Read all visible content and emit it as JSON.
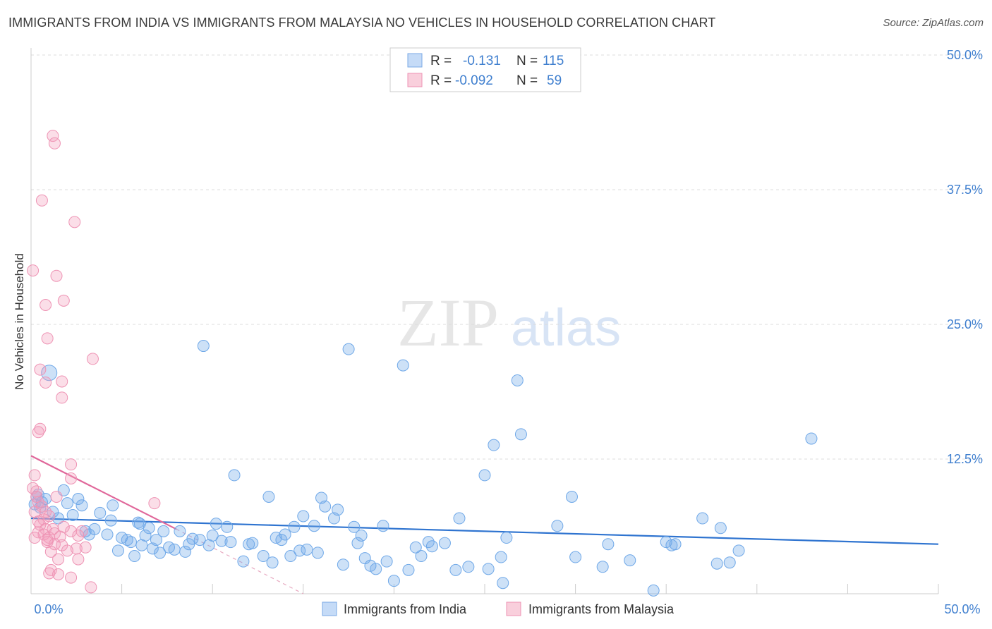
{
  "header": {
    "title": "IMMIGRANTS FROM INDIA VS IMMIGRANTS FROM MALAYSIA NO VEHICLES IN HOUSEHOLD CORRELATION CHART",
    "source": "Source: ZipAtlas.com"
  },
  "watermark": {
    "zip": "ZIP",
    "atlas": "atlas"
  },
  "colors": {
    "india": "#6fa8e8",
    "india_line": "#2f74d0",
    "malaysia": "#f4a0bd",
    "malaysia_line": "#e0679a",
    "value_text": "#3f7fcf"
  },
  "legend_box": {
    "rows": [
      {
        "r_label": "R =",
        "r_value": "-0.131",
        "n_label": "N =",
        "n_value": "115"
      },
      {
        "r_label": "R =",
        "r_value": "-0.092",
        "n_label": "N =",
        "n_value": "59"
      }
    ]
  },
  "chart_data": {
    "type": "scatter",
    "title": "IMMIGRANTS FROM INDIA VS IMMIGRANTS FROM MALAYSIA NO VEHICLES IN HOUSEHOLD CORRELATION CHART",
    "xlabel": "",
    "ylabel": "No Vehicles in Household",
    "xlim": [
      0,
      50
    ],
    "ylim": [
      0,
      50
    ],
    "x_tick_labels": [
      "0.0%",
      "50.0%"
    ],
    "y_ticks": [
      12.5,
      25,
      37.5,
      50
    ],
    "y_tick_labels": [
      "12.5%",
      "25.0%",
      "37.5%",
      "50.0%"
    ],
    "grid": true,
    "legend": [
      "Immigrants from India",
      "Immigrants from Malaysia"
    ],
    "series": [
      {
        "name": "Immigrants from India",
        "r": -0.131,
        "n": 115,
        "trend": {
          "x": [
            0,
            50
          ],
          "y": [
            7.0,
            4.6
          ]
        },
        "points": [
          [
            1.0,
            20.5
          ],
          [
            0.3,
            9.0
          ],
          [
            0.6,
            8.5
          ],
          [
            0.4,
            9.2
          ],
          [
            0.5,
            8.0
          ],
          [
            0.8,
            8.8
          ],
          [
            0.2,
            8.3
          ],
          [
            1.2,
            7.6
          ],
          [
            1.8,
            9.6
          ],
          [
            2.0,
            8.4
          ],
          [
            2.3,
            7.3
          ],
          [
            2.8,
            8.2
          ],
          [
            2.6,
            8.8
          ],
          [
            3.2,
            5.5
          ],
          [
            3.5,
            6.0
          ],
          [
            3.8,
            7.5
          ],
          [
            4.2,
            5.5
          ],
          [
            4.4,
            6.8
          ],
          [
            4.5,
            8.2
          ],
          [
            4.8,
            4.0
          ],
          [
            5.0,
            5.2
          ],
          [
            5.3,
            5.0
          ],
          [
            5.5,
            4.8
          ],
          [
            5.7,
            3.5
          ],
          [
            5.9,
            6.6
          ],
          [
            6.1,
            4.5
          ],
          [
            6.3,
            5.4
          ],
          [
            6.5,
            6.1
          ],
          [
            6.7,
            4.2
          ],
          [
            6.9,
            5.0
          ],
          [
            7.1,
            3.8
          ],
          [
            7.3,
            5.8
          ],
          [
            7.6,
            4.3
          ],
          [
            7.9,
            4.1
          ],
          [
            8.2,
            5.8
          ],
          [
            8.5,
            3.9
          ],
          [
            8.7,
            4.6
          ],
          [
            8.9,
            5.1
          ],
          [
            9.5,
            23.0
          ],
          [
            9.3,
            5.0
          ],
          [
            9.8,
            4.5
          ],
          [
            10.0,
            5.4
          ],
          [
            10.2,
            6.5
          ],
          [
            10.5,
            4.9
          ],
          [
            10.8,
            6.2
          ],
          [
            11.0,
            4.8
          ],
          [
            11.2,
            11.0
          ],
          [
            11.7,
            3.0
          ],
          [
            12.0,
            4.6
          ],
          [
            12.2,
            4.7
          ],
          [
            12.8,
            3.5
          ],
          [
            13.1,
            9.0
          ],
          [
            13.3,
            2.9
          ],
          [
            13.5,
            5.2
          ],
          [
            13.8,
            5.0
          ],
          [
            14.0,
            5.5
          ],
          [
            14.3,
            3.5
          ],
          [
            14.5,
            6.2
          ],
          [
            14.8,
            4.0
          ],
          [
            15.0,
            7.2
          ],
          [
            15.2,
            4.1
          ],
          [
            15.6,
            6.3
          ],
          [
            15.8,
            3.8
          ],
          [
            16.0,
            8.9
          ],
          [
            16.2,
            8.1
          ],
          [
            16.7,
            7.0
          ],
          [
            16.9,
            7.8
          ],
          [
            17.2,
            2.7
          ],
          [
            17.5,
            22.7
          ],
          [
            17.8,
            6.2
          ],
          [
            18.0,
            4.7
          ],
          [
            18.2,
            5.4
          ],
          [
            18.4,
            3.3
          ],
          [
            18.7,
            2.6
          ],
          [
            19.0,
            2.3
          ],
          [
            19.4,
            6.3
          ],
          [
            19.6,
            3.0
          ],
          [
            20.0,
            1.2
          ],
          [
            20.5,
            21.2
          ],
          [
            20.8,
            2.2
          ],
          [
            21.2,
            4.3
          ],
          [
            21.5,
            3.5
          ],
          [
            21.9,
            4.8
          ],
          [
            22.1,
            4.4
          ],
          [
            22.8,
            4.7
          ],
          [
            23.4,
            2.2
          ],
          [
            23.6,
            7.0
          ],
          [
            24.1,
            2.5
          ],
          [
            25.0,
            11.0
          ],
          [
            25.2,
            2.3
          ],
          [
            25.5,
            13.8
          ],
          [
            25.9,
            3.4
          ],
          [
            26.2,
            5.2
          ],
          [
            26.8,
            19.8
          ],
          [
            27.0,
            14.8
          ],
          [
            26.0,
            1.0
          ],
          [
            29.0,
            6.3
          ],
          [
            29.8,
            9.0
          ],
          [
            30.0,
            3.4
          ],
          [
            31.5,
            2.5
          ],
          [
            31.8,
            4.6
          ],
          [
            33.0,
            3.1
          ],
          [
            34.3,
            0.3
          ],
          [
            35.0,
            4.8
          ],
          [
            35.3,
            4.5
          ],
          [
            35.5,
            4.6
          ],
          [
            37.0,
            7.0
          ],
          [
            37.8,
            2.8
          ],
          [
            38.0,
            6.1
          ],
          [
            38.5,
            2.9
          ],
          [
            39.0,
            4.0
          ],
          [
            43.0,
            14.4
          ],
          [
            6.0,
            6.5
          ],
          [
            3.0,
            5.8
          ],
          [
            1.5,
            7.0
          ]
        ]
      },
      {
        "name": "Immigrants from Malaysia",
        "r": -0.092,
        "n": 59,
        "trend": {
          "x": [
            0,
            8.0
          ],
          "y": [
            12.8,
            6.0
          ]
        },
        "trend_dashed": {
          "x": [
            8.0,
            15.0
          ],
          "y": [
            6.0,
            0.0
          ]
        },
        "points": [
          [
            1.2,
            42.5
          ],
          [
            1.3,
            41.8
          ],
          [
            0.6,
            36.5
          ],
          [
            2.4,
            34.5
          ],
          [
            0.1,
            30.0
          ],
          [
            1.4,
            29.5
          ],
          [
            1.8,
            27.2
          ],
          [
            0.8,
            26.8
          ],
          [
            0.9,
            23.7
          ],
          [
            3.4,
            21.8
          ],
          [
            0.5,
            20.8
          ],
          [
            0.8,
            19.6
          ],
          [
            1.7,
            19.7
          ],
          [
            1.7,
            18.2
          ],
          [
            0.5,
            15.3
          ],
          [
            0.4,
            15.0
          ],
          [
            2.2,
            12.0
          ],
          [
            0.2,
            11.0
          ],
          [
            2.2,
            10.7
          ],
          [
            0.1,
            9.8
          ],
          [
            0.3,
            9.5
          ],
          [
            0.3,
            9.0
          ],
          [
            1.4,
            9.0
          ],
          [
            0.4,
            8.5
          ],
          [
            0.6,
            8.1
          ],
          [
            0.8,
            7.6
          ],
          [
            0.2,
            7.6
          ],
          [
            6.8,
            8.4
          ],
          [
            1.0,
            7.2
          ],
          [
            0.7,
            6.9
          ],
          [
            0.5,
            6.4
          ],
          [
            0.8,
            6.0
          ],
          [
            1.2,
            6.0
          ],
          [
            0.4,
            5.7
          ],
          [
            0.7,
            5.5
          ],
          [
            1.0,
            5.2
          ],
          [
            1.3,
            5.6
          ],
          [
            1.6,
            5.3
          ],
          [
            2.2,
            5.8
          ],
          [
            2.8,
            5.8
          ],
          [
            2.6,
            5.4
          ],
          [
            0.9,
            4.8
          ],
          [
            1.3,
            4.6
          ],
          [
            1.7,
            4.5
          ],
          [
            2.5,
            4.2
          ],
          [
            3.0,
            4.3
          ],
          [
            1.1,
            3.9
          ],
          [
            2.0,
            4.0
          ],
          [
            1.5,
            3.2
          ],
          [
            2.6,
            3.2
          ],
          [
            1.1,
            2.2
          ],
          [
            1.0,
            1.9
          ],
          [
            1.5,
            1.8
          ],
          [
            2.2,
            1.5
          ],
          [
            3.3,
            0.6
          ],
          [
            0.2,
            5.2
          ],
          [
            0.4,
            6.7
          ],
          [
            1.8,
            6.2
          ],
          [
            0.9,
            5.0
          ]
        ]
      }
    ]
  },
  "bottom_legend": {
    "india_label": "Immigrants from India",
    "malaysia_label": "Immigrants from Malaysia"
  }
}
